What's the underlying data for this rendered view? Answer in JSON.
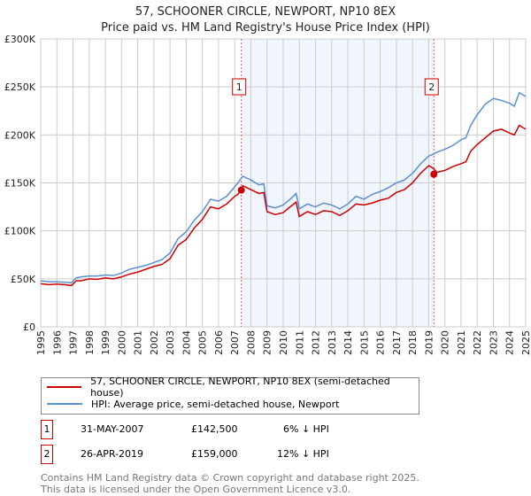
{
  "chart_data": {
    "type": "line",
    "title": "57, SCHOONER CIRCLE, NEWPORT, NP10 8EX",
    "subtitle": "Price paid vs. HM Land Registry's House Price Index (HPI)",
    "xlim": [
      1995,
      2025
    ],
    "ylim": [
      0,
      300000
    ],
    "x_ticks": [
      "1995",
      "1996",
      "1997",
      "1998",
      "1999",
      "2000",
      "2001",
      "2002",
      "2003",
      "2004",
      "2005",
      "2006",
      "2007",
      "2008",
      "2009",
      "2010",
      "2011",
      "2012",
      "2013",
      "2014",
      "2015",
      "2016",
      "2017",
      "2018",
      "2019",
      "2020",
      "2021",
      "2022",
      "2023",
      "2024",
      "2025"
    ],
    "y_ticks": [
      {
        "v": 0,
        "label": "£0"
      },
      {
        "v": 50000,
        "label": "£50K"
      },
      {
        "v": 100000,
        "label": "£100K"
      },
      {
        "v": 150000,
        "label": "£150K"
      },
      {
        "v": 200000,
        "label": "£200K"
      },
      {
        "v": 250000,
        "label": "£250K"
      },
      {
        "v": 300000,
        "label": "£300K"
      }
    ],
    "grid": true,
    "shaded_range": [
      2007.41,
      2019.32
    ],
    "series": [
      {
        "name": "57, SCHOONER CIRCLE, NEWPORT, NP10 8EX (semi-detached house)",
        "color": "#cc0000",
        "x": [
          1995,
          1995.5,
          1996,
          1996.5,
          1996.9,
          1997.2,
          1997.5,
          1998,
          1998.5,
          1999,
          1999.5,
          2000,
          2000.5,
          2001,
          2001.5,
          2002,
          2002.5,
          2003,
          2003.5,
          2004,
          2004.5,
          2005,
          2005.5,
          2006,
          2006.5,
          2007,
          2007.2,
          2007.5,
          2008,
          2008.5,
          2008.8,
          2009,
          2009.5,
          2010,
          2010.5,
          2010.8,
          2011,
          2011.5,
          2012,
          2012.5,
          2013,
          2013.5,
          2014,
          2014.5,
          2015,
          2015.5,
          2016,
          2016.5,
          2017,
          2017.5,
          2018,
          2018.5,
          2019,
          2019.3,
          2019.5,
          2020,
          2020.5,
          2021,
          2021.3,
          2021.6,
          2022,
          2022.5,
          2023,
          2023.5,
          2024,
          2024.3,
          2024.6,
          2025
        ],
        "y": [
          45000,
          44000,
          44500,
          44000,
          43000,
          48000,
          48000,
          50000,
          49500,
          51000,
          50000,
          52000,
          55000,
          57000,
          60000,
          63000,
          65000,
          71000,
          85000,
          91000,
          103000,
          112000,
          125000,
          123000,
          128000,
          136000,
          138000,
          147000,
          143000,
          139000,
          140000,
          120000,
          117000,
          119000,
          126000,
          130000,
          115000,
          120000,
          117000,
          121000,
          120000,
          116000,
          121000,
          128000,
          127000,
          129000,
          132000,
          134000,
          140000,
          143000,
          150000,
          160000,
          168000,
          165000,
          161000,
          163000,
          167000,
          170000,
          172000,
          183000,
          190000,
          197000,
          204000,
          206000,
          202000,
          200000,
          210000,
          206000
        ]
      },
      {
        "name": "HPI: Average price, semi-detached house, Newport",
        "color": "#5b8fd4",
        "x": [
          1995,
          1995.5,
          1996,
          1996.5,
          1996.9,
          1997.2,
          1997.5,
          1998,
          1998.5,
          1999,
          1999.5,
          2000,
          2000.5,
          2001,
          2001.5,
          2002,
          2002.5,
          2003,
          2003.5,
          2004,
          2004.5,
          2005,
          2005.5,
          2006,
          2006.5,
          2007,
          2007.2,
          2007.5,
          2008,
          2008.5,
          2008.8,
          2009,
          2009.5,
          2010,
          2010.5,
          2010.8,
          2011,
          2011.5,
          2012,
          2012.5,
          2013,
          2013.5,
          2014,
          2014.5,
          2015,
          2015.5,
          2016,
          2016.5,
          2017,
          2017.5,
          2018,
          2018.5,
          2019,
          2019.3,
          2019.5,
          2020,
          2020.5,
          2021,
          2021.3,
          2021.6,
          2022,
          2022.5,
          2023,
          2023.5,
          2024,
          2024.3,
          2024.6,
          2025
        ],
        "y": [
          48000,
          47000,
          47000,
          46500,
          46000,
          51000,
          52000,
          53000,
          53000,
          54000,
          53500,
          56000,
          60000,
          62000,
          64000,
          67000,
          70000,
          77000,
          92000,
          99000,
          111000,
          120000,
          133000,
          131000,
          136000,
          146000,
          150000,
          157000,
          153000,
          148000,
          149000,
          126000,
          124000,
          127000,
          134000,
          139000,
          123000,
          128000,
          125000,
          129000,
          127000,
          123000,
          128000,
          136000,
          133000,
          138000,
          141000,
          145000,
          150000,
          153000,
          160000,
          170000,
          178000,
          180000,
          182000,
          185000,
          189000,
          195000,
          197000,
          210000,
          221000,
          232000,
          238000,
          236000,
          233000,
          230000,
          244000,
          240000
        ]
      }
    ],
    "sales": [
      {
        "label": "1",
        "x": 2007.41,
        "y": 142500
      },
      {
        "label": "2",
        "x": 2019.32,
        "y": 159000
      }
    ],
    "legend_position": "below"
  },
  "table": [
    {
      "num": "1",
      "date": "31-MAY-2007",
      "price": "£142,500",
      "hpi": "6% ↓ HPI"
    },
    {
      "num": "2",
      "date": "26-APR-2019",
      "price": "£159,000",
      "hpi": "12% ↓ HPI"
    }
  ],
  "footer": [
    "Contains HM Land Registry data © Crown copyright and database right 2025.",
    "This data is licensed under the Open Government Licence v3.0."
  ]
}
